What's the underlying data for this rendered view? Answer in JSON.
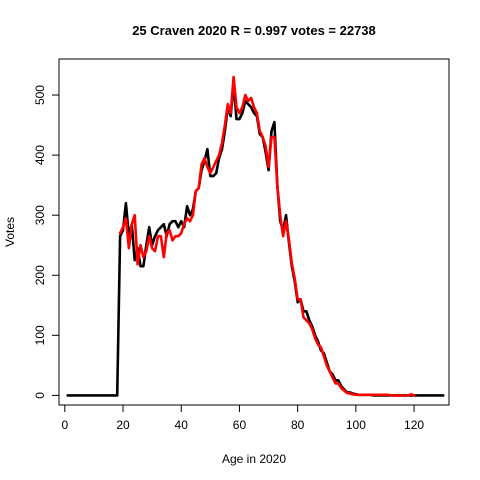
{
  "chart_data": {
    "type": "line",
    "title": "25 Craven 2020 R = 0.997 votes = 22738",
    "xlabel": "Age in 2020",
    "ylabel": "Votes",
    "xlim": [
      -2,
      132
    ],
    "ylim": [
      -16,
      560
    ],
    "xticks": [
      0,
      20,
      40,
      60,
      80,
      100,
      120
    ],
    "yticks": [
      0,
      100,
      200,
      300,
      400,
      500
    ],
    "grid": false,
    "series": [
      {
        "color": "#000000",
        "x": [
          1,
          2,
          3,
          4,
          5,
          6,
          7,
          8,
          9,
          10,
          11,
          12,
          13,
          14,
          15,
          16,
          17,
          18,
          19,
          20,
          21,
          22,
          23,
          24,
          25,
          26,
          27,
          28,
          29,
          30,
          31,
          32,
          33,
          34,
          35,
          36,
          37,
          38,
          39,
          40,
          41,
          42,
          43,
          44,
          45,
          46,
          47,
          48,
          49,
          50,
          51,
          52,
          53,
          54,
          55,
          56,
          57,
          58,
          59,
          60,
          61,
          62,
          63,
          64,
          65,
          66,
          67,
          68,
          69,
          70,
          71,
          72,
          73,
          74,
          75,
          76,
          77,
          78,
          79,
          80,
          81,
          82,
          83,
          84,
          85,
          86,
          87,
          88,
          89,
          90,
          91,
          92,
          93,
          94,
          95,
          96,
          97,
          98,
          99,
          100,
          101,
          102,
          103,
          104,
          105,
          106,
          107,
          108,
          109,
          110,
          111,
          112,
          113,
          114,
          115,
          116,
          117,
          118,
          119,
          120,
          121,
          122,
          123,
          124,
          125,
          126,
          127,
          128,
          129,
          130
        ],
        "y": [
          0,
          0,
          0,
          0,
          0,
          0,
          0,
          0,
          0,
          0,
          0,
          0,
          0,
          0,
          0,
          0,
          0,
          0,
          265,
          275,
          320,
          265,
          285,
          225,
          245,
          215,
          215,
          250,
          280,
          250,
          265,
          275,
          280,
          285,
          265,
          285,
          290,
          290,
          280,
          290,
          280,
          315,
          300,
          310,
          340,
          345,
          375,
          390,
          410,
          365,
          365,
          370,
          395,
          410,
          440,
          480,
          465,
          520,
          460,
          460,
          470,
          490,
          485,
          480,
          470,
          465,
          435,
          430,
          405,
          375,
          440,
          455,
          350,
          290,
          275,
          300,
          255,
          215,
          190,
          155,
          160,
          140,
          140,
          125,
          115,
          100,
          90,
          75,
          70,
          55,
          40,
          35,
          25,
          25,
          15,
          10,
          5,
          5,
          3,
          2,
          1,
          1,
          1,
          1,
          1,
          0,
          0,
          0,
          0,
          0,
          0,
          0,
          0,
          0,
          0,
          0,
          0,
          0,
          0,
          0,
          0,
          0,
          0,
          0,
          0,
          0,
          0,
          0,
          0,
          0
        ]
      },
      {
        "color": "#ff0000",
        "x": [
          19,
          20,
          21,
          22,
          23,
          24,
          25,
          26,
          27,
          28,
          29,
          30,
          31,
          32,
          33,
          34,
          35,
          36,
          37,
          38,
          39,
          40,
          41,
          42,
          43,
          44,
          45,
          46,
          47,
          48,
          49,
          50,
          51,
          52,
          53,
          54,
          55,
          56,
          57,
          58,
          59,
          60,
          61,
          62,
          63,
          64,
          65,
          66,
          67,
          68,
          69,
          70,
          71,
          72,
          73,
          74,
          75,
          76,
          77,
          78,
          79,
          80,
          81,
          82,
          83,
          84,
          85,
          86,
          87,
          88,
          89,
          90,
          91,
          92,
          93,
          94,
          95,
          96,
          97,
          98,
          99,
          100,
          101,
          102,
          103,
          104,
          105,
          106,
          107,
          108,
          109,
          110,
          111,
          112,
          118,
          119,
          120
        ],
        "y": [
          270,
          280,
          295,
          245,
          285,
          300,
          218,
          250,
          230,
          240,
          265,
          245,
          240,
          265,
          265,
          230,
          270,
          275,
          258,
          265,
          265,
          270,
          285,
          295,
          290,
          300,
          340,
          345,
          385,
          395,
          380,
          370,
          380,
          390,
          400,
          420,
          450,
          485,
          470,
          530,
          480,
          470,
          480,
          500,
          490,
          495,
          480,
          470,
          440,
          430,
          415,
          380,
          430,
          430,
          350,
          300,
          265,
          290,
          260,
          220,
          195,
          160,
          160,
          130,
          125,
          120,
          110,
          95,
          85,
          80,
          65,
          50,
          40,
          30,
          20,
          20,
          12,
          8,
          4,
          3,
          2,
          1,
          1,
          1,
          1,
          1,
          1,
          1,
          1,
          1,
          1,
          1,
          1,
          0,
          0,
          2,
          0
        ]
      }
    ]
  }
}
